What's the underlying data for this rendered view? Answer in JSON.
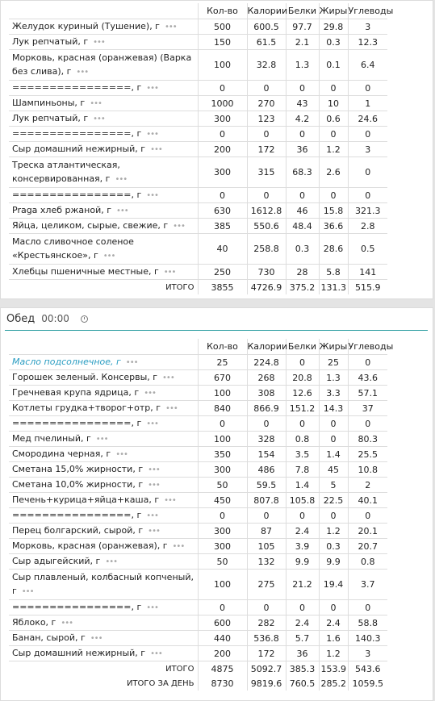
{
  "columns": {
    "name": "",
    "qty": "Кол-во",
    "cal": "Калории",
    "prot": "Белки",
    "fat": "Жиры",
    "carb": "Углеводы"
  },
  "dots": "•••",
  "block1": {
    "rows": [
      {
        "name": "Желудок куриный (Тушение), г",
        "qty": "500",
        "cal": "600.5",
        "prot": "97.7",
        "fat": "29.8",
        "carb": "3"
      },
      {
        "name": "Лук репчатый, г",
        "qty": "150",
        "cal": "61.5",
        "prot": "2.1",
        "fat": "0.3",
        "carb": "12.3"
      },
      {
        "name": "Морковь, красная (оранжевая) (Варка без слива), г",
        "qty": "100",
        "cal": "32.8",
        "prot": "1.3",
        "fat": "0.1",
        "carb": "6.4",
        "tall": true
      },
      {
        "name": "================, г",
        "qty": "0",
        "cal": "0",
        "prot": "0",
        "fat": "0",
        "carb": "0"
      },
      {
        "name": "Шампиньоны, г",
        "qty": "1000",
        "cal": "270",
        "prot": "43",
        "fat": "10",
        "carb": "1"
      },
      {
        "name": "Лук репчатый, г",
        "qty": "300",
        "cal": "123",
        "prot": "4.2",
        "fat": "0.6",
        "carb": "24.6"
      },
      {
        "name": "================, г",
        "qty": "0",
        "cal": "0",
        "prot": "0",
        "fat": "0",
        "carb": "0"
      },
      {
        "name": "Сыр домашний нежирный, г",
        "qty": "200",
        "cal": "172",
        "prot": "36",
        "fat": "1.2",
        "carb": "3"
      },
      {
        "name": "Треска атлантическая, консервированная, г",
        "qty": "300",
        "cal": "315",
        "prot": "68.3",
        "fat": "2.6",
        "carb": "0",
        "tall": true
      },
      {
        "name": "================, г",
        "qty": "0",
        "cal": "0",
        "prot": "0",
        "fat": "0",
        "carb": "0"
      },
      {
        "name": "Praga хлеб ржаной, г",
        "qty": "630",
        "cal": "1612.8",
        "prot": "46",
        "fat": "15.8",
        "carb": "321.3"
      },
      {
        "name": "Яйца, целиком, сырые, свежие, г",
        "qty": "385",
        "cal": "550.6",
        "prot": "48.4",
        "fat": "36.6",
        "carb": "2.8"
      },
      {
        "name": "Масло сливочное соленое «Крестьянское», г",
        "qty": "40",
        "cal": "258.8",
        "prot": "0.3",
        "fat": "28.6",
        "carb": "0.5",
        "tall": true
      },
      {
        "name": "Хлебцы пшеничные местные, г",
        "qty": "250",
        "cal": "730",
        "prot": "28",
        "fat": "5.8",
        "carb": "141"
      }
    ],
    "total": {
      "label": "ИТОГО",
      "qty": "3855",
      "cal": "4726.9",
      "prot": "375.2",
      "fat": "131.3",
      "carb": "515.9"
    }
  },
  "block2": {
    "meal_title": "Обед",
    "meal_time": "00:00",
    "clock_icon": "clock-icon",
    "rows": [
      {
        "name": "Масло подсолнечное, г",
        "qty": "25",
        "cal": "224.8",
        "prot": "0",
        "fat": "25",
        "carb": "0",
        "highlight": true
      },
      {
        "name": "Горошек зеленый. Консервы, г",
        "qty": "670",
        "cal": "268",
        "prot": "20.8",
        "fat": "1.3",
        "carb": "43.6"
      },
      {
        "name": "Гречневая крупа ядрица, г",
        "qty": "100",
        "cal": "308",
        "prot": "12.6",
        "fat": "3.3",
        "carb": "57.1"
      },
      {
        "name": "Котлеты грудка+творог+отр, г",
        "qty": "840",
        "cal": "866.9",
        "prot": "151.2",
        "fat": "14.3",
        "carb": "37"
      },
      {
        "name": "================, г",
        "qty": "0",
        "cal": "0",
        "prot": "0",
        "fat": "0",
        "carb": "0"
      },
      {
        "name": "Мед пчелиный, г",
        "qty": "100",
        "cal": "328",
        "prot": "0.8",
        "fat": "0",
        "carb": "80.3"
      },
      {
        "name": "Смородина черная, г",
        "qty": "350",
        "cal": "154",
        "prot": "3.5",
        "fat": "1.4",
        "carb": "25.5"
      },
      {
        "name": "Сметана 15,0% жирности, г",
        "qty": "300",
        "cal": "486",
        "prot": "7.8",
        "fat": "45",
        "carb": "10.8"
      },
      {
        "name": "Сметана 10,0% жирности, г",
        "qty": "50",
        "cal": "59.5",
        "prot": "1.4",
        "fat": "5",
        "carb": "2"
      },
      {
        "name": "Печень+курица+яйца+каша, г",
        "qty": "450",
        "cal": "807.8",
        "prot": "105.8",
        "fat": "22.5",
        "carb": "40.1"
      },
      {
        "name": "================, г",
        "qty": "0",
        "cal": "0",
        "prot": "0",
        "fat": "0",
        "carb": "0"
      },
      {
        "name": "Перец болгарский, сырой, г",
        "qty": "300",
        "cal": "87",
        "prot": "2.4",
        "fat": "1.2",
        "carb": "20.1"
      },
      {
        "name": "Морковь, красная (оранжевая), г",
        "qty": "300",
        "cal": "105",
        "prot": "3.9",
        "fat": "0.3",
        "carb": "20.7"
      },
      {
        "name": "Сыр адыгейский, г",
        "qty": "50",
        "cal": "132",
        "prot": "9.9",
        "fat": "9.9",
        "carb": "0.8"
      },
      {
        "name": "Сыр плавленый, колбасный копченый, г",
        "qty": "100",
        "cal": "275",
        "prot": "21.2",
        "fat": "19.4",
        "carb": "3.7",
        "tall": true
      },
      {
        "name": "================, г",
        "qty": "0",
        "cal": "0",
        "prot": "0",
        "fat": "0",
        "carb": "0"
      },
      {
        "name": "Яблоко, г",
        "qty": "600",
        "cal": "282",
        "prot": "2.4",
        "fat": "2.4",
        "carb": "58.8"
      },
      {
        "name": "Банан, сырой, г",
        "qty": "440",
        "cal": "536.8",
        "prot": "5.7",
        "fat": "1.6",
        "carb": "140.3"
      },
      {
        "name": "Сыр домашний нежирный, г",
        "qty": "200",
        "cal": "172",
        "prot": "36",
        "fat": "1.2",
        "carb": "3"
      }
    ],
    "total": {
      "label": "ИТОГО",
      "qty": "4875",
      "cal": "5092.7",
      "prot": "385.3",
      "fat": "153.9",
      "carb": "543.6"
    },
    "day_total": {
      "label": "ИТОГО ЗА ДЕНЬ",
      "qty": "8730",
      "cal": "9819.6",
      "prot": "760.5",
      "fat": "285.2",
      "carb": "1059.5"
    }
  }
}
